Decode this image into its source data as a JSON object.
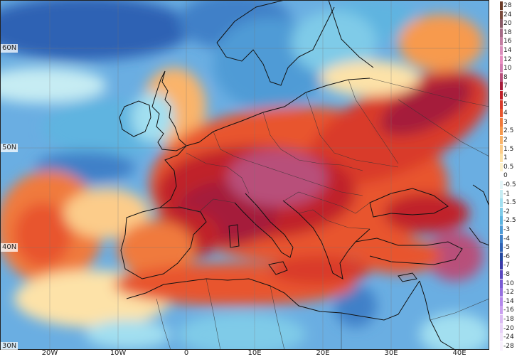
{
  "map": {
    "lat_labels": [
      "60N",
      "50N",
      "40N",
      "30N"
    ],
    "lon_labels": [
      "20W",
      "10W",
      "0",
      "10E",
      "20E",
      "30E",
      "40E"
    ]
  },
  "colors": {
    "ocean_deep_blue": "#3a78c8",
    "ocean_blue": "#5aa0de",
    "cyan": "#8fd0ea",
    "light_cyan": "#bde6f2",
    "white": "#ffffff",
    "light_yellow": "#fde9a8",
    "orange": "#f7a04a",
    "red_orange": "#e8552e",
    "red": "#c8262a",
    "dark_red": "#a51c3a",
    "magenta": "#b84f7a",
    "coast": "#111111"
  },
  "legend": {
    "items": [
      {
        "label": "28",
        "color": "#6b3a26"
      },
      {
        "label": "24",
        "color": "#7a4a3c"
      },
      {
        "label": "20",
        "color": "#8a5a66"
      },
      {
        "label": "18",
        "color": "#a56a86"
      },
      {
        "label": "16",
        "color": "#c47ea2"
      },
      {
        "label": "14",
        "color": "#dc8fbd"
      },
      {
        "label": "12",
        "color": "#e98ec1"
      },
      {
        "label": "10",
        "color": "#d27bb0"
      },
      {
        "label": "8",
        "color": "#b84f7a"
      },
      {
        "label": "7",
        "color": "#a51c3a"
      },
      {
        "label": "6",
        "color": "#c0202a"
      },
      {
        "label": "5",
        "color": "#d93a2a"
      },
      {
        "label": "4",
        "color": "#e8552e"
      },
      {
        "label": "3",
        "color": "#f07a3c"
      },
      {
        "label": "2.5",
        "color": "#f79a4e"
      },
      {
        "label": "2",
        "color": "#fab46a"
      },
      {
        "label": "1.5",
        "color": "#fccc8a"
      },
      {
        "label": "1",
        "color": "#fde2a8"
      },
      {
        "label": "0.5",
        "color": "#fef2cc"
      },
      {
        "label": "0",
        "color": "#ffffff"
      },
      {
        "label": "-0.5",
        "color": "#e4f5f8"
      },
      {
        "label": "-1",
        "color": "#c6ecf3"
      },
      {
        "label": "-1.5",
        "color": "#a2dff0"
      },
      {
        "label": "-2",
        "color": "#7fcbe8"
      },
      {
        "label": "-2.5",
        "color": "#5eb4e0"
      },
      {
        "label": "-3",
        "color": "#4f9bd6"
      },
      {
        "label": "-4",
        "color": "#3f80c8"
      },
      {
        "label": "-5",
        "color": "#2f62b4"
      },
      {
        "label": "-6",
        "color": "#2448a0"
      },
      {
        "label": "-7",
        "color": "#3a3aa8"
      },
      {
        "label": "-8",
        "color": "#5a48c0"
      },
      {
        "label": "-10",
        "color": "#7a5cd4"
      },
      {
        "label": "-12",
        "color": "#9670e0"
      },
      {
        "label": "-14",
        "color": "#b488ec"
      },
      {
        "label": "-16",
        "color": "#caa0f0"
      },
      {
        "label": "-18",
        "color": "#dcbcf4"
      },
      {
        "label": "-20",
        "color": "#e8d2f8"
      },
      {
        "label": "-24",
        "color": "#f2e4fb"
      },
      {
        "label": "-28",
        "color": "#f8f0fd"
      }
    ]
  }
}
